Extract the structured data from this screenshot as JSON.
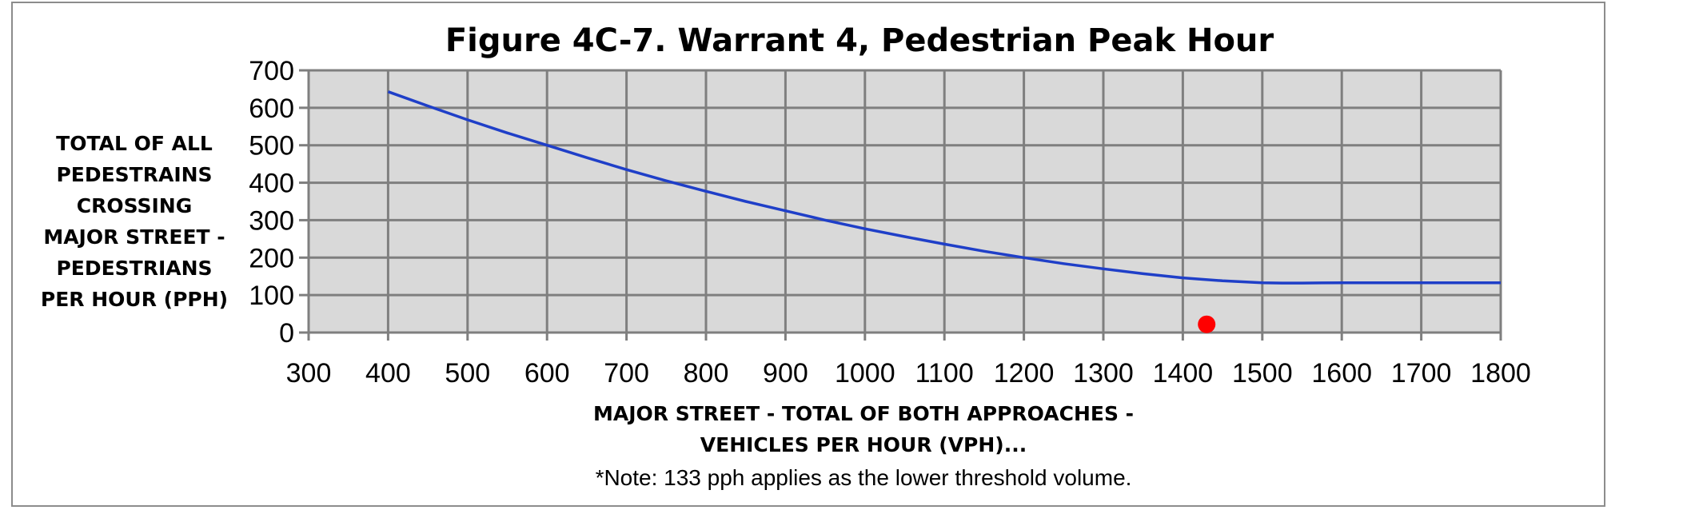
{
  "chart_data": {
    "type": "line",
    "title": "Figure 4C-7. Warrant 4, Pedestrian Peak Hour",
    "ylabel_lines": [
      "TOTAL OF ALL",
      "PEDESTRAINS",
      "CROSSING",
      "MAJOR STREET -",
      "PEDESTRIANS",
      "PER HOUR (PPH)"
    ],
    "xlabel_lines": [
      "MAJOR STREET - TOTAL OF BOTH APPROACHES -",
      "VEHICLES PER HOUR (VPH)..."
    ],
    "note": "*Note: 133 pph applies as the lower threshold volume.",
    "xlim": [
      300,
      1800
    ],
    "ylim": [
      0,
      700
    ],
    "x_ticks": [
      "300",
      "400",
      "500",
      "600",
      "700",
      "800",
      "900",
      "1000",
      "1100",
      "1200",
      "1300",
      "1400",
      "1500",
      "1600",
      "1700",
      "1800"
    ],
    "y_ticks": [
      "0",
      "100",
      "200",
      "300",
      "400",
      "500",
      "600",
      "700"
    ],
    "grid": true,
    "series": [
      {
        "type": "line",
        "color": "#1f3fc8",
        "x": [
          400,
          450,
          500,
          550,
          600,
          650,
          700,
          750,
          800,
          850,
          900,
          950,
          1000,
          1050,
          1100,
          1150,
          1200,
          1250,
          1300,
          1350,
          1400,
          1450,
          1500,
          1525,
          1550,
          1600,
          1700,
          1800
        ],
        "y": [
          643,
          605,
          568,
          533,
          500,
          467,
          435,
          405,
          377,
          350,
          325,
          300,
          277,
          256,
          236,
          217,
          200,
          184,
          170,
          157,
          146,
          138,
          133,
          132,
          132,
          133,
          133,
          133
        ]
      },
      {
        "type": "scatter",
        "color": "#ff0000",
        "x": [
          1430
        ],
        "y": [
          22
        ]
      }
    ]
  }
}
